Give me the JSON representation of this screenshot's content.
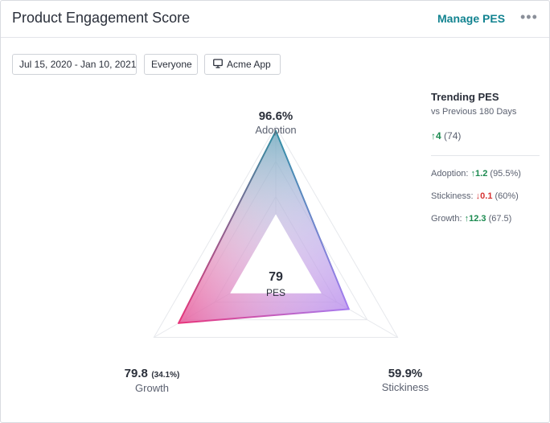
{
  "header": {
    "title": "Product Engagement Score",
    "manage_label": "Manage PES",
    "more_label": "•••"
  },
  "filters": {
    "date_range": "Jul 15, 2020 - Jan 10, 2021",
    "segment": "Everyone",
    "app": "Acme App",
    "app_icon": "monitor-icon"
  },
  "chart": {
    "pes_value": "79",
    "pes_label": "PES",
    "adoption": {
      "value": "96.6%",
      "label": "Adoption"
    },
    "growth": {
      "value": "79.8",
      "sub": "(34.1%)",
      "label": "Growth"
    },
    "stickiness": {
      "value": "59.9%",
      "label": "Stickiness"
    }
  },
  "chart_data": {
    "type": "radar",
    "axes": [
      "Adoption",
      "Stickiness",
      "Growth"
    ],
    "values": [
      96.6,
      59.9,
      79.8
    ],
    "max": 100,
    "center_value": 79,
    "colors": {
      "adoption": "#2f8fa3",
      "stickiness": "#a77cf0",
      "growth": "#e8347a"
    }
  },
  "trending": {
    "title": "Trending PES",
    "subtitle": "vs Previous 180 Days",
    "overall_arrow": "↑",
    "overall_delta": "4",
    "overall_prev": "(74)",
    "rows": [
      {
        "label": "Adoption:",
        "arrow": "↑",
        "delta": "1.2",
        "prev": "(95.5%)",
        "direction": "up"
      },
      {
        "label": "Stickiness:",
        "arrow": "↓",
        "delta": "0.1",
        "prev": "(60%)",
        "direction": "down"
      },
      {
        "label": "Growth:",
        "arrow": "↑",
        "delta": "12.3",
        "prev": "(67.5)",
        "direction": "up"
      }
    ]
  }
}
